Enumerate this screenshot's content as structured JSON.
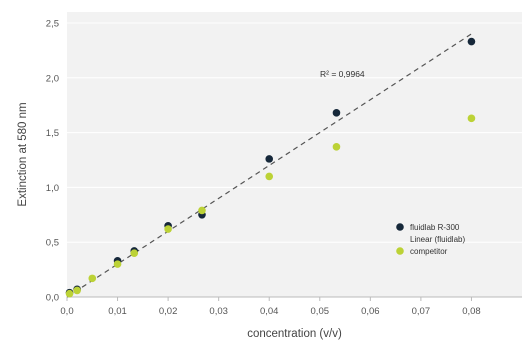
{
  "chart_data": {
    "type": "scatter",
    "title": "",
    "xlabel": "concentration (v/v)",
    "ylabel": "Extinction at 580 nm",
    "xlim": [
      0,
      0.09
    ],
    "ylim": [
      0,
      2.6
    ],
    "xticks": [
      0,
      0.01,
      0.02,
      0.03,
      0.04,
      0.05,
      0.06,
      0.07,
      0.08
    ],
    "xtick_labels": [
      "0,0",
      "0,01",
      "0,02",
      "0,03",
      "0,04",
      "0,05",
      "0,06",
      "0,07",
      "0,08"
    ],
    "yticks": [
      0,
      0.5,
      1.0,
      1.5,
      2.0,
      2.5
    ],
    "ytick_labels": [
      "0,0",
      "0,5",
      "1,0",
      "1,5",
      "2,0",
      "2,5"
    ],
    "grid": "horizontal",
    "legend_position": "bottom-right",
    "annotation": "R² = 0,9964",
    "series": [
      {
        "name": "fluidlab R-300",
        "color": "#16283a",
        "marker": "circle",
        "x": [
          0.0005,
          0.002,
          0.01,
          0.0133,
          0.02,
          0.0267,
          0.04,
          0.0533,
          0.08
        ],
        "y": [
          0.04,
          0.07,
          0.33,
          0.42,
          0.65,
          0.75,
          1.26,
          1.68,
          2.33
        ]
      },
      {
        "name": "Linear (fluidlab)",
        "color": "#555555",
        "marker": "dashed-line",
        "x": [
          0,
          0.08
        ],
        "y": [
          0.0,
          2.4
        ]
      },
      {
        "name": "competitor",
        "color": "#bcd236",
        "marker": "circle",
        "x": [
          0.0005,
          0.002,
          0.005,
          0.01,
          0.0133,
          0.02,
          0.0267,
          0.04,
          0.0533,
          0.08
        ],
        "y": [
          0.03,
          0.06,
          0.17,
          0.3,
          0.4,
          0.62,
          0.79,
          1.1,
          1.37,
          1.63
        ]
      }
    ]
  }
}
